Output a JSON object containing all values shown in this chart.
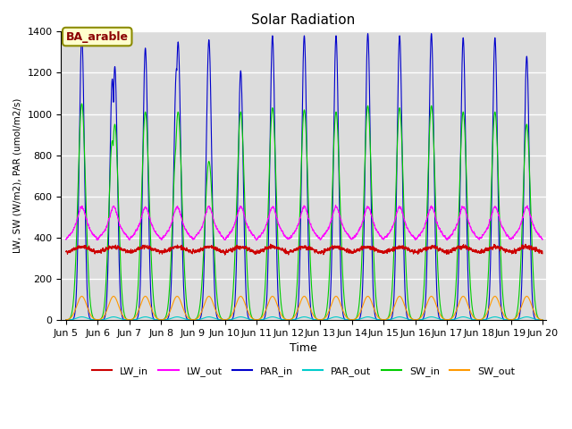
{
  "title": "Solar Radiation",
  "ylabel": "LW, SW (W/m2), PAR (umol/m2/s)",
  "xlabel": "Time",
  "annotation": "BA_arable",
  "ylim": [
    0,
    1400
  ],
  "start_day": 5,
  "n_days": 15,
  "background_color": "#dcdcdc",
  "series": {
    "LW_in": {
      "color": "#cc0000"
    },
    "LW_out": {
      "color": "#ff00ff"
    },
    "PAR_in": {
      "color": "#0000cc"
    },
    "PAR_out": {
      "color": "#00cccc"
    },
    "SW_in": {
      "color": "#00cc00"
    },
    "SW_out": {
      "color": "#ff9900"
    }
  },
  "peak_heights_par": [
    1380,
    1170,
    1320,
    1350,
    1360,
    1210,
    1380,
    1380,
    1380,
    1390,
    1380,
    1390,
    1370,
    1370,
    1280
  ],
  "peak_heights_sw": [
    1050,
    870,
    1010,
    1010,
    770,
    1010,
    1030,
    1020,
    1010,
    1040,
    1030,
    1040,
    1010,
    1010,
    950
  ],
  "par_out_peak": 10,
  "sw_out_peak": 115,
  "lw_in_base": 325,
  "lw_out_base": 370
}
